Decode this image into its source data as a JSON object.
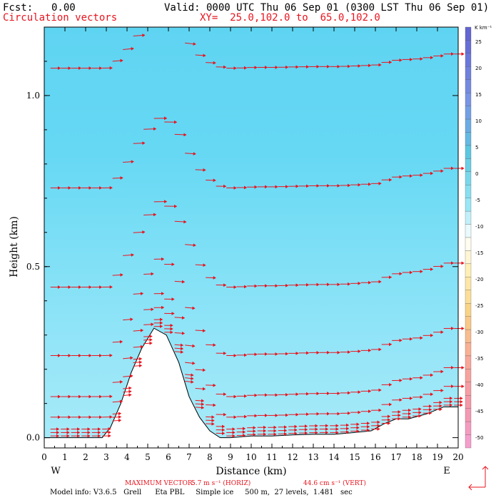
{
  "header": {
    "fcst_label": "Fcst:",
    "fcst_value": "0.00",
    "valid": "Valid: 0000 UTC Thu 06 Sep 01 (0300 LST Thu 06 Sep 01)",
    "field": "Circulation vectors",
    "xy": "XY=  25.0,102.0 to  65.0,102.0"
  },
  "footer": {
    "max_label": "MAXIMUM VECTOR:",
    "horiz": "5.7 m s⁻¹ (HORIZ)",
    "vert": "44.6 cm s⁻¹ (VERT)",
    "model_info": "Model info: V3.6.5   Grell      Eta PBL     Simple ice     500 m,  27 levels,  1.481   sec"
  },
  "colors": {
    "background": "#ffffff",
    "vector": "#e8141e",
    "terrain_line": "#000000",
    "axis": "#000000"
  },
  "chart_data": {
    "type": "cross-section vector field",
    "xlabel": "Distance (km)",
    "ylabel": "Height (km)",
    "xlim": [
      0,
      20
    ],
    "ylim": [
      -0.03,
      1.2
    ],
    "x_ticks": [
      "0",
      "1",
      "2",
      "3",
      "4",
      "5",
      "6",
      "7",
      "8",
      "9",
      "10",
      "11",
      "12",
      "13",
      "14",
      "15",
      "16",
      "17",
      "18",
      "19",
      "20"
    ],
    "y_ticks": [
      "0.0",
      "0.5",
      "1.0"
    ],
    "y_tick_values": [
      0.0,
      0.5,
      1.0
    ],
    "x_endpoints": {
      "left": "W",
      "right": "E"
    },
    "colorbar": {
      "unit": "K km⁻¹",
      "labels": [
        "25",
        "20",
        "15",
        "10",
        "5",
        "0",
        "-5",
        "-10",
        "-15",
        "-20",
        "-25",
        "-30",
        "-35",
        "-40",
        "-45",
        "-50"
      ],
      "values": [
        25,
        20,
        15,
        10,
        5,
        0,
        -5,
        -10,
        -15,
        -20,
        -25,
        -30,
        -35,
        -40,
        -45,
        -50
      ]
    },
    "terrain": {
      "x": [
        0,
        2.8,
        3.2,
        3.7,
        4.2,
        4.7,
        5.3,
        5.9,
        6.5,
        7.0,
        7.5,
        8.0,
        8.5,
        9.0,
        10,
        11,
        12,
        13,
        14,
        15,
        15.8,
        16.4,
        17,
        17.6,
        18.5,
        19.3,
        20
      ],
      "y": [
        0.0,
        0.0,
        0.03,
        0.1,
        0.19,
        0.26,
        0.32,
        0.3,
        0.22,
        0.12,
        0.06,
        0.02,
        0.0,
        0.0,
        0.005,
        0.005,
        0.008,
        0.01,
        0.01,
        0.015,
        0.02,
        0.04,
        0.055,
        0.055,
        0.07,
        0.09,
        0.09
      ]
    },
    "vector_levels_km": [
      0.005,
      0.015,
      0.025,
      0.06,
      0.12,
      0.24,
      0.44,
      0.73,
      1.08
    ],
    "max_vector": {
      "horiz_m_s": 5.7,
      "vert_cm_s": 44.6
    }
  }
}
